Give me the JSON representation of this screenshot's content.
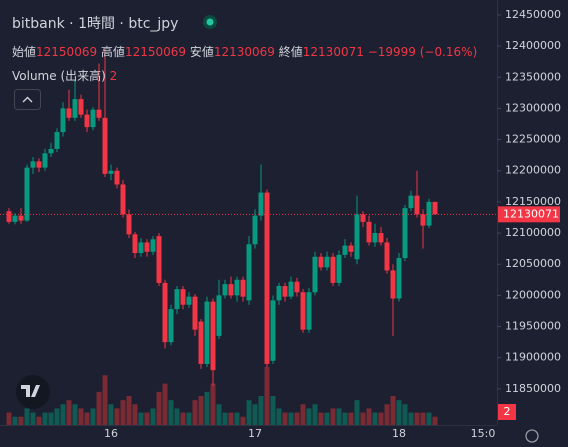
{
  "chart_data": {
    "type": "candlestick",
    "title": "bitbank · 1時間 · btc_jpy",
    "ohlc_labels": [
      "始値",
      "高値",
      "安値",
      "終値"
    ],
    "change_label": "−19999 (−0.16%)",
    "volume_title": "Volume (出来高)",
    "up_color": "#089981",
    "down_color": "#f23645",
    "volume_up_color": "#0f5a52",
    "volume_down_color": "#7a2a33",
    "grid": false,
    "ylim": [
      11792000,
      12474000
    ],
    "yticks": [
      12450000,
      12400000,
      12350000,
      12300000,
      12250000,
      12200000,
      12150000,
      12100000,
      12050000,
      12000000,
      11950000,
      11900000,
      11850000
    ],
    "categories": [
      null,
      null,
      null,
      null,
      null,
      null,
      null,
      null,
      null,
      null,
      null,
      null,
      null,
      null,
      null,
      null,
      null,
      "16",
      null,
      null,
      null,
      null,
      null,
      null,
      null,
      null,
      null,
      null,
      null,
      null,
      null,
      null,
      null,
      null,
      null,
      null,
      null,
      null,
      null,
      null,
      null,
      "17",
      null,
      null,
      null,
      null,
      null,
      null,
      null,
      null,
      null,
      null,
      null,
      null,
      null,
      null,
      null,
      null,
      null,
      null,
      null,
      null,
      null,
      null,
      null,
      "18",
      null,
      null,
      null,
      null,
      null,
      null,
      null,
      null,
      null,
      null,
      null,
      null,
      null,
      "15:0"
    ],
    "open": [
      12135000,
      12118000,
      12128000,
      12120000,
      12205000,
      12215000,
      12205000,
      12228000,
      12235000,
      12262000,
      12300000,
      12285000,
      12315000,
      12290000,
      12270000,
      12298000,
      12285000,
      12195000,
      12200000,
      12178000,
      12130000,
      12098000,
      12068000,
      12085000,
      12070000,
      12095000,
      12020000,
      11925000,
      11978000,
      12010000,
      11985000,
      11998000,
      11958000,
      11890000,
      11990000,
      11935000,
      12000000,
      12018000,
      12000000,
      12025000,
      11992000,
      12082000,
      12128000,
      12165000,
      11895000,
      11992000,
      12015000,
      11998000,
      12022000,
      12005000,
      11945000,
      12005000,
      12062000,
      12045000,
      12062000,
      12020000,
      12065000,
      12080000,
      12058000,
      12130000,
      12118000,
      12085000,
      12100000,
      12085000,
      12040000,
      11995000,
      12060000,
      12140000,
      12160000,
      12130000,
      12112000,
      12150069,
      null,
      null,
      null,
      null,
      null,
      null,
      null,
      null
    ],
    "high": [
      12140000,
      12132000,
      12140000,
      12210000,
      12222000,
      12220000,
      12235000,
      12245000,
      12268000,
      12310000,
      12330000,
      12345000,
      12322000,
      12298000,
      12302000,
      12372000,
      12395000,
      12210000,
      12205000,
      12185000,
      12138000,
      12102000,
      12092000,
      12090000,
      12095000,
      12100000,
      12025000,
      11985000,
      12015000,
      12015000,
      12005000,
      12002000,
      11962000,
      11998000,
      11995000,
      12025000,
      12025000,
      12030000,
      12030000,
      12030000,
      12095000,
      12138000,
      12210000,
      12170000,
      12000000,
      12020000,
      12020000,
      12030000,
      12028000,
      12010000,
      12012000,
      12070000,
      12068000,
      12070000,
      12068000,
      12072000,
      12090000,
      12085000,
      12160000,
      12135000,
      12128000,
      12115000,
      12110000,
      12092000,
      12050000,
      12068000,
      12145000,
      12168000,
      12200000,
      12138000,
      12155000,
      12150069,
      null,
      null,
      null,
      null,
      null,
      null,
      null,
      null
    ],
    "low": [
      12115000,
      12114000,
      12115000,
      12118000,
      12195000,
      12198000,
      12200000,
      12222000,
      12230000,
      12255000,
      12280000,
      12280000,
      12285000,
      12262000,
      12265000,
      12280000,
      12190000,
      12185000,
      12172000,
      12125000,
      12092000,
      12060000,
      12062000,
      12062000,
      12065000,
      12015000,
      11915000,
      11920000,
      11970000,
      11978000,
      11980000,
      11935000,
      11882000,
      11885000,
      11855000,
      11930000,
      11995000,
      11995000,
      11990000,
      11990000,
      11985000,
      12075000,
      12120000,
      11885000,
      11890000,
      11985000,
      11990000,
      11994000,
      11998000,
      11940000,
      11940000,
      12000000,
      12040000,
      12040000,
      12015000,
      12015000,
      12060000,
      12062000,
      12050000,
      12110000,
      12080000,
      12078000,
      12080000,
      12035000,
      11935000,
      11990000,
      12055000,
      12135000,
      12125000,
      12075000,
      12108000,
      12130069,
      null,
      null,
      null,
      null,
      null,
      null,
      null,
      null
    ],
    "close": [
      12118000,
      12128000,
      12120000,
      12205000,
      12215000,
      12205000,
      12228000,
      12235000,
      12262000,
      12300000,
      12285000,
      12315000,
      12290000,
      12270000,
      12298000,
      12285000,
      12195000,
      12200000,
      12178000,
      12130000,
      12098000,
      12068000,
      12085000,
      12070000,
      12090000,
      12020000,
      11925000,
      11978000,
      12010000,
      11985000,
      11998000,
      11945000,
      11890000,
      11990000,
      11880000,
      12000000,
      12018000,
      12000000,
      12025000,
      11998000,
      12082000,
      12128000,
      12165000,
      11890000,
      11992000,
      12015000,
      11998000,
      12022000,
      12005000,
      11945000,
      12005000,
      12062000,
      12045000,
      12062000,
      12020000,
      12065000,
      12080000,
      12070000,
      12130000,
      12118000,
      12085000,
      12100000,
      12085000,
      12040000,
      11995000,
      12060000,
      12140000,
      12160000,
      12130000,
      12112000,
      12150000,
      12130071,
      null,
      null,
      null,
      null,
      null,
      null,
      null,
      null
    ],
    "volume": [
      3,
      2,
      2,
      4,
      3,
      2,
      3,
      3,
      4,
      5,
      6,
      5,
      4,
      3,
      4,
      8,
      12,
      5,
      4,
      6,
      7,
      5,
      3,
      3,
      4,
      8,
      10,
      6,
      4,
      3,
      3,
      6,
      7,
      8,
      10,
      5,
      3,
      3,
      3,
      2,
      6,
      5,
      7,
      14,
      7,
      4,
      3,
      3,
      3,
      5,
      4,
      5,
      3,
      3,
      4,
      4,
      3,
      3,
      6,
      3,
      4,
      3,
      3,
      5,
      7,
      6,
      5,
      3,
      3,
      3,
      3,
      2,
      null,
      null,
      null,
      null,
      null,
      null,
      null,
      null
    ]
  }
}
